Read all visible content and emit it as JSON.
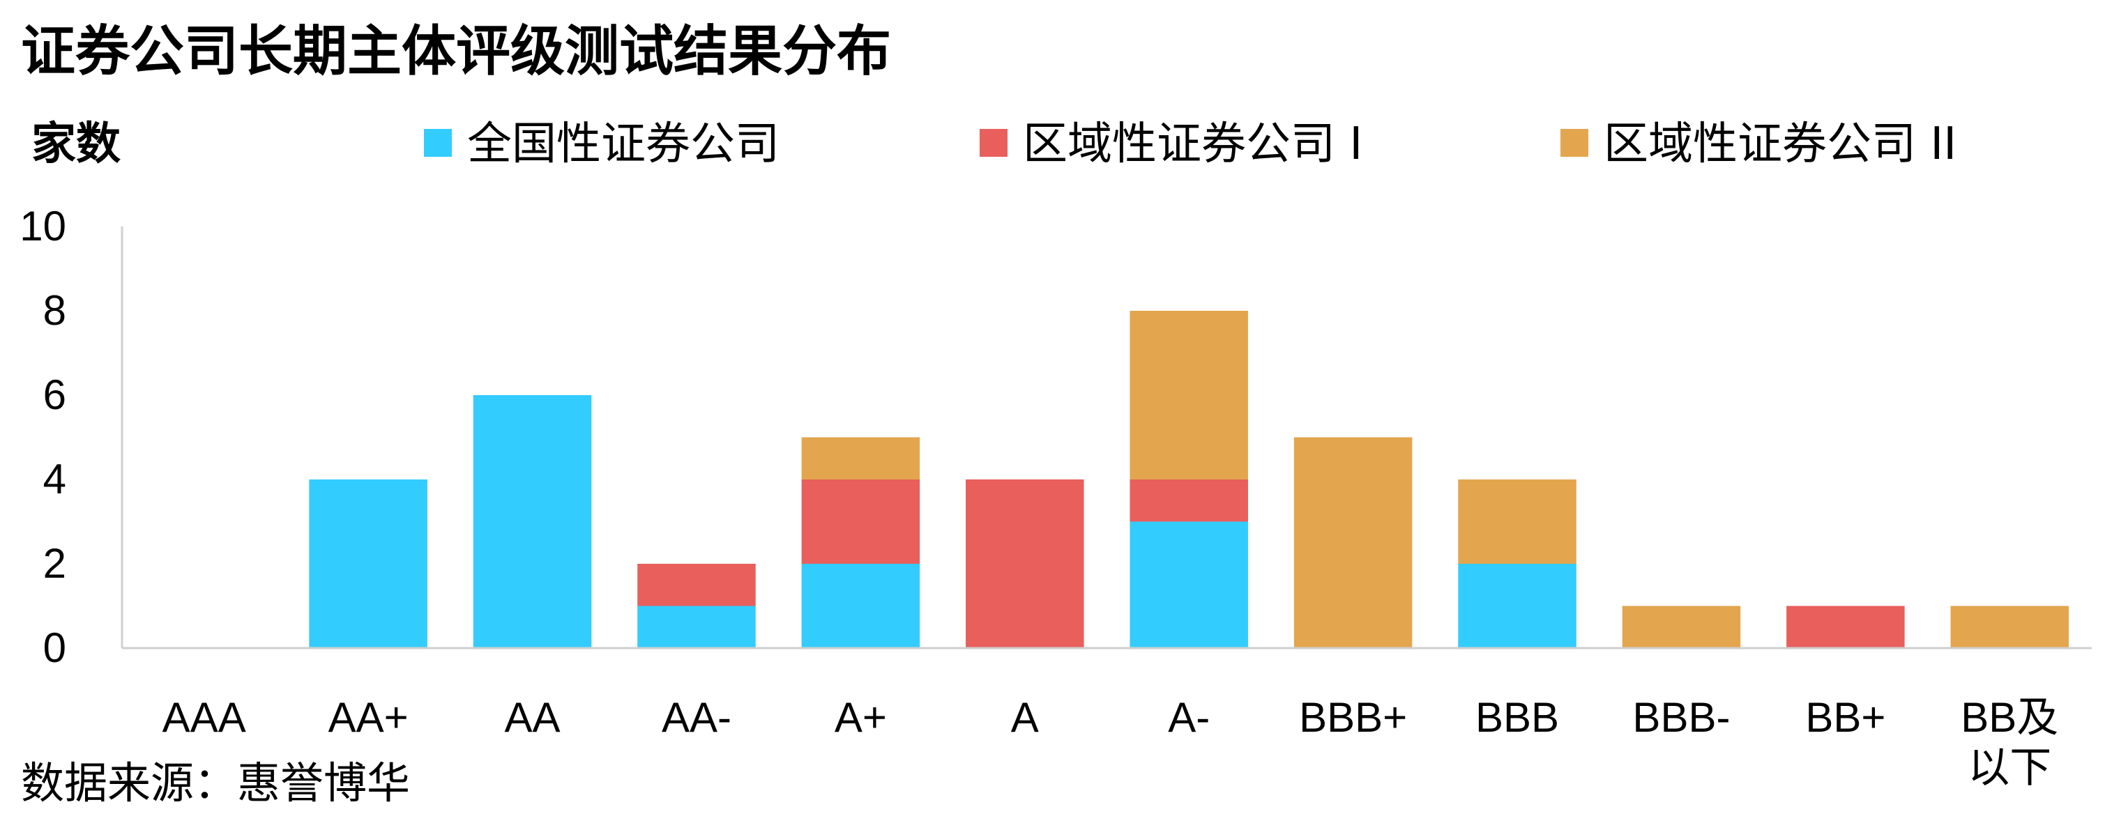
{
  "chart_data": {
    "type": "bar",
    "stacked": true,
    "title": "证券公司长期主体评级测试结果分布",
    "ylabel": "家数",
    "ylim": [
      0,
      10
    ],
    "yticks": [
      "0",
      "2",
      "4",
      "6",
      "8",
      "10"
    ],
    "categories": [
      "AAA",
      "AA+",
      "AA",
      "AA-",
      "A+",
      "A",
      "A-",
      "BBB+",
      "BBB",
      "BBB-",
      "BB+",
      "BB及以下"
    ],
    "series": [
      {
        "name": "全国性证券公司",
        "color": "#33CCFF",
        "values": [
          0,
          4,
          6,
          1,
          2,
          0,
          3,
          0,
          2,
          0,
          0,
          0
        ]
      },
      {
        "name": "区域性证券公司 I",
        "color": "#E85F5C",
        "values": [
          0,
          0,
          0,
          1,
          2,
          4,
          1,
          0,
          0,
          0,
          1,
          0
        ]
      },
      {
        "name": "区域性证券公司 II",
        "color": "#E3A64E",
        "values": [
          0,
          0,
          0,
          0,
          1,
          0,
          4,
          5,
          2,
          1,
          0,
          1
        ]
      }
    ],
    "legend_position": "top",
    "grid": false
  },
  "source": "数据来源：惠誉博华"
}
